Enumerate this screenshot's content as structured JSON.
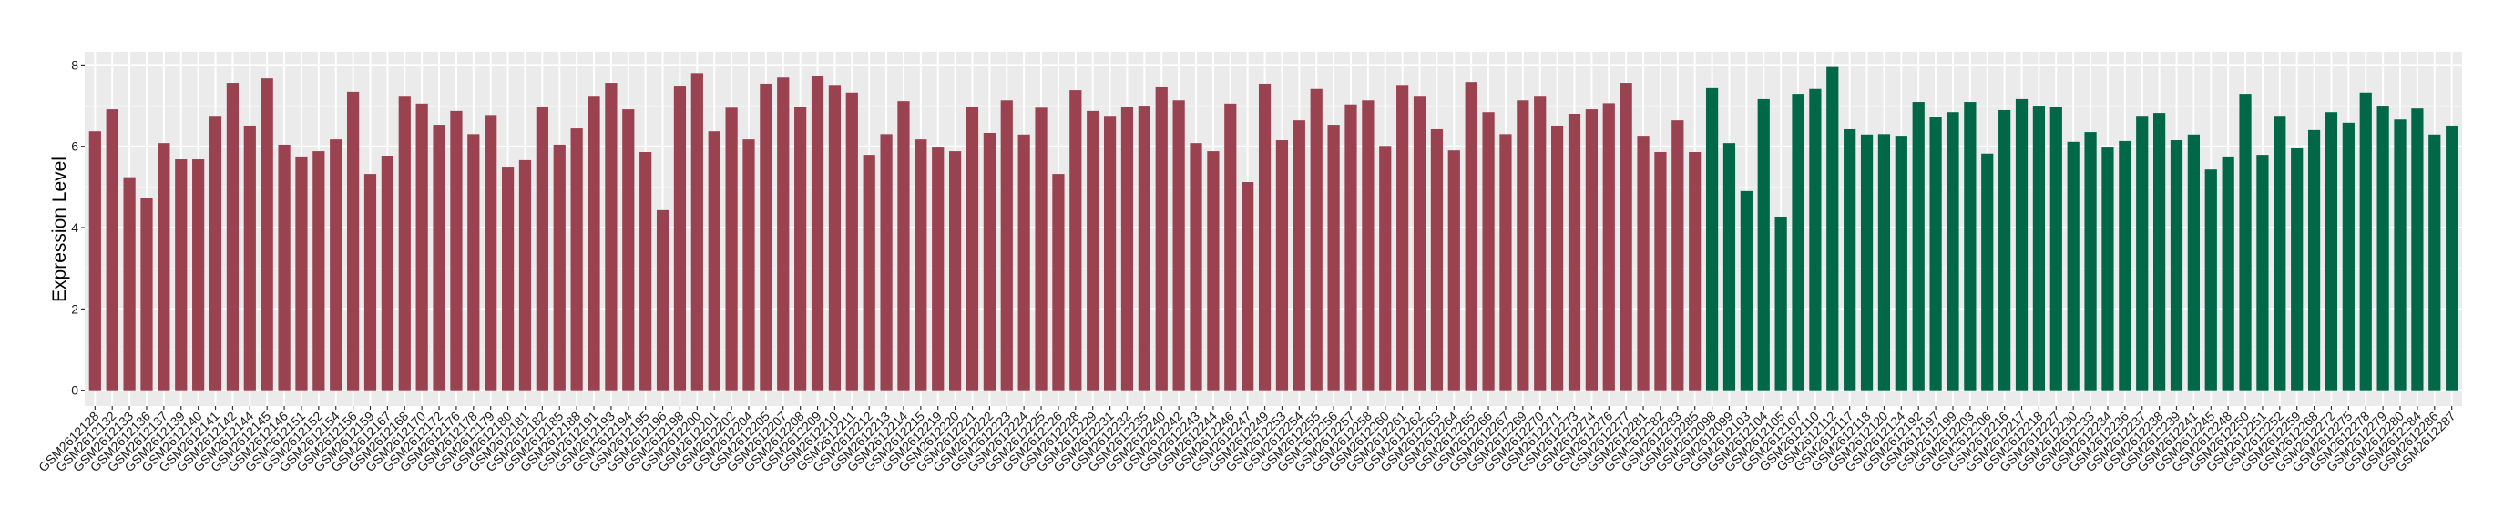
{
  "chart_data": {
    "type": "bar",
    "title": "",
    "xlabel": "",
    "ylabel": "Expression Level",
    "ylim": [
      0,
      8.3
    ],
    "yticks": [
      0,
      2,
      4,
      6,
      8
    ],
    "grid": true,
    "colors": {
      "group1": "#9B4250",
      "group2": "#006846",
      "panel": "#EBEBEB",
      "grid": "#FFFFFF"
    },
    "categories": [
      "GSM2612128",
      "GSM2612132",
      "GSM2612133",
      "GSM2612136",
      "GSM2612137",
      "GSM2612139",
      "GSM2612140",
      "GSM2612141",
      "GSM2612142",
      "GSM2612144",
      "GSM2612145",
      "GSM2612146",
      "GSM2612151",
      "GSM2612152",
      "GSM2612154",
      "GSM2612156",
      "GSM2612159",
      "GSM2612167",
      "GSM2612168",
      "GSM2612170",
      "GSM2612172",
      "GSM2612176",
      "GSM2612178",
      "GSM2612179",
      "GSM2612180",
      "GSM2612181",
      "GSM2612182",
      "GSM2612185",
      "GSM2612188",
      "GSM2612191",
      "GSM2612193",
      "GSM2612194",
      "GSM2612195",
      "GSM2612196",
      "GSM2612198",
      "GSM2612200",
      "GSM2612201",
      "GSM2612202",
      "GSM2612204",
      "GSM2612205",
      "GSM2612207",
      "GSM2612208",
      "GSM2612209",
      "GSM2612210",
      "GSM2612211",
      "GSM2612212",
      "GSM2612213",
      "GSM2612214",
      "GSM2612215",
      "GSM2612219",
      "GSM2612220",
      "GSM2612221",
      "GSM2612222",
      "GSM2612223",
      "GSM2612224",
      "GSM2612225",
      "GSM2612226",
      "GSM2612228",
      "GSM2612229",
      "GSM2612231",
      "GSM2612232",
      "GSM2612235",
      "GSM2612240",
      "GSM2612242",
      "GSM2612243",
      "GSM2612244",
      "GSM2612246",
      "GSM2612247",
      "GSM2612249",
      "GSM2612253",
      "GSM2612254",
      "GSM2612255",
      "GSM2612256",
      "GSM2612257",
      "GSM2612258",
      "GSM2612260",
      "GSM2612261",
      "GSM2612262",
      "GSM2612263",
      "GSM2612264",
      "GSM2612265",
      "GSM2612266",
      "GSM2612267",
      "GSM2612269",
      "GSM2612270",
      "GSM2612271",
      "GSM2612273",
      "GSM2612274",
      "GSM2612276",
      "GSM2612277",
      "GSM2612281",
      "GSM2612282",
      "GSM2612283",
      "GSM2612285",
      "GSM2612098",
      "GSM2612099",
      "GSM2612103",
      "GSM2612104",
      "GSM2612105",
      "GSM2612107",
      "GSM2612110",
      "GSM2612112",
      "GSM2612117",
      "GSM2612118",
      "GSM2612120",
      "GSM2612124",
      "GSM2612192",
      "GSM2612197",
      "GSM2612199",
      "GSM2612203",
      "GSM2612206",
      "GSM2612216",
      "GSM2612217",
      "GSM2612218",
      "GSM2612227",
      "GSM2612230",
      "GSM2612233",
      "GSM2612234",
      "GSM2612236",
      "GSM2612237",
      "GSM2612238",
      "GSM2612239",
      "GSM2612241",
      "GSM2612245",
      "GSM2612248",
      "GSM2612250",
      "GSM2612251",
      "GSM2612252",
      "GSM2612259",
      "GSM2612268",
      "GSM2612272",
      "GSM2612275",
      "GSM2612278",
      "GSM2612279",
      "GSM2612280",
      "GSM2612284",
      "GSM2612286",
      "GSM2612287"
    ],
    "values": [
      6.37,
      6.91,
      5.24,
      4.74,
      6.08,
      5.68,
      5.68,
      6.75,
      7.56,
      6.51,
      7.67,
      6.04,
      5.75,
      5.88,
      6.17,
      7.34,
      5.32,
      5.77,
      7.22,
      7.05,
      6.53,
      6.87,
      6.3,
      6.77,
      5.5,
      5.66,
      6.98,
      6.04,
      6.44,
      7.22,
      7.56,
      6.91,
      5.86,
      4.43,
      7.47,
      7.8,
      6.37,
      6.95,
      6.17,
      7.54,
      7.69,
      6.98,
      7.72,
      7.51,
      7.32,
      5.79,
      6.3,
      7.11,
      6.17,
      5.97,
      5.88,
      6.98,
      6.33,
      7.13,
      6.29,
      6.95,
      5.32,
      7.38,
      6.87,
      6.75,
      6.98,
      7.0,
      7.45,
      7.13,
      6.08,
      5.88,
      7.05,
      5.12,
      7.54,
      6.15,
      6.64,
      7.41,
      6.53,
      7.03,
      7.13,
      6.01,
      7.51,
      7.22,
      6.42,
      5.9,
      7.58,
      6.84,
      6.3,
      7.13,
      7.22,
      6.51,
      6.8,
      6.91,
      7.06,
      7.56,
      6.26,
      5.86,
      6.64,
      5.86,
      7.43,
      6.08,
      4.9,
      7.16,
      4.27,
      7.29,
      7.41,
      7.95,
      6.42,
      6.29,
      6.3,
      6.26,
      7.09,
      6.71,
      6.84,
      7.09,
      5.82,
      6.89,
      7.16,
      7.0,
      6.98,
      6.11,
      6.35,
      5.97,
      6.13,
      6.75,
      6.82,
      6.15,
      6.29,
      5.43,
      5.75,
      7.29,
      5.79,
      6.75,
      5.95,
      6.4,
      6.84,
      6.58,
      7.32,
      7.0,
      6.66,
      6.93,
      6.29,
      6.51
    ],
    "groups": [
      1,
      1,
      1,
      1,
      1,
      1,
      1,
      1,
      1,
      1,
      1,
      1,
      1,
      1,
      1,
      1,
      1,
      1,
      1,
      1,
      1,
      1,
      1,
      1,
      1,
      1,
      1,
      1,
      1,
      1,
      1,
      1,
      1,
      1,
      1,
      1,
      1,
      1,
      1,
      1,
      1,
      1,
      1,
      1,
      1,
      1,
      1,
      1,
      1,
      1,
      1,
      1,
      1,
      1,
      1,
      1,
      1,
      1,
      1,
      1,
      1,
      1,
      1,
      1,
      1,
      1,
      1,
      1,
      1,
      1,
      1,
      1,
      1,
      1,
      1,
      1,
      1,
      1,
      1,
      1,
      1,
      1,
      1,
      1,
      1,
      1,
      1,
      1,
      1,
      1,
      1,
      1,
      1,
      1,
      2,
      2,
      2,
      2,
      2,
      2,
      2,
      2,
      2,
      2,
      2,
      2,
      2,
      2,
      2,
      2,
      2,
      2,
      2,
      2,
      2,
      2,
      2,
      2,
      2,
      2,
      2,
      2,
      2,
      2,
      2,
      2,
      2,
      2,
      2,
      2,
      2,
      2,
      2,
      2,
      2,
      2,
      2,
      2
    ]
  }
}
